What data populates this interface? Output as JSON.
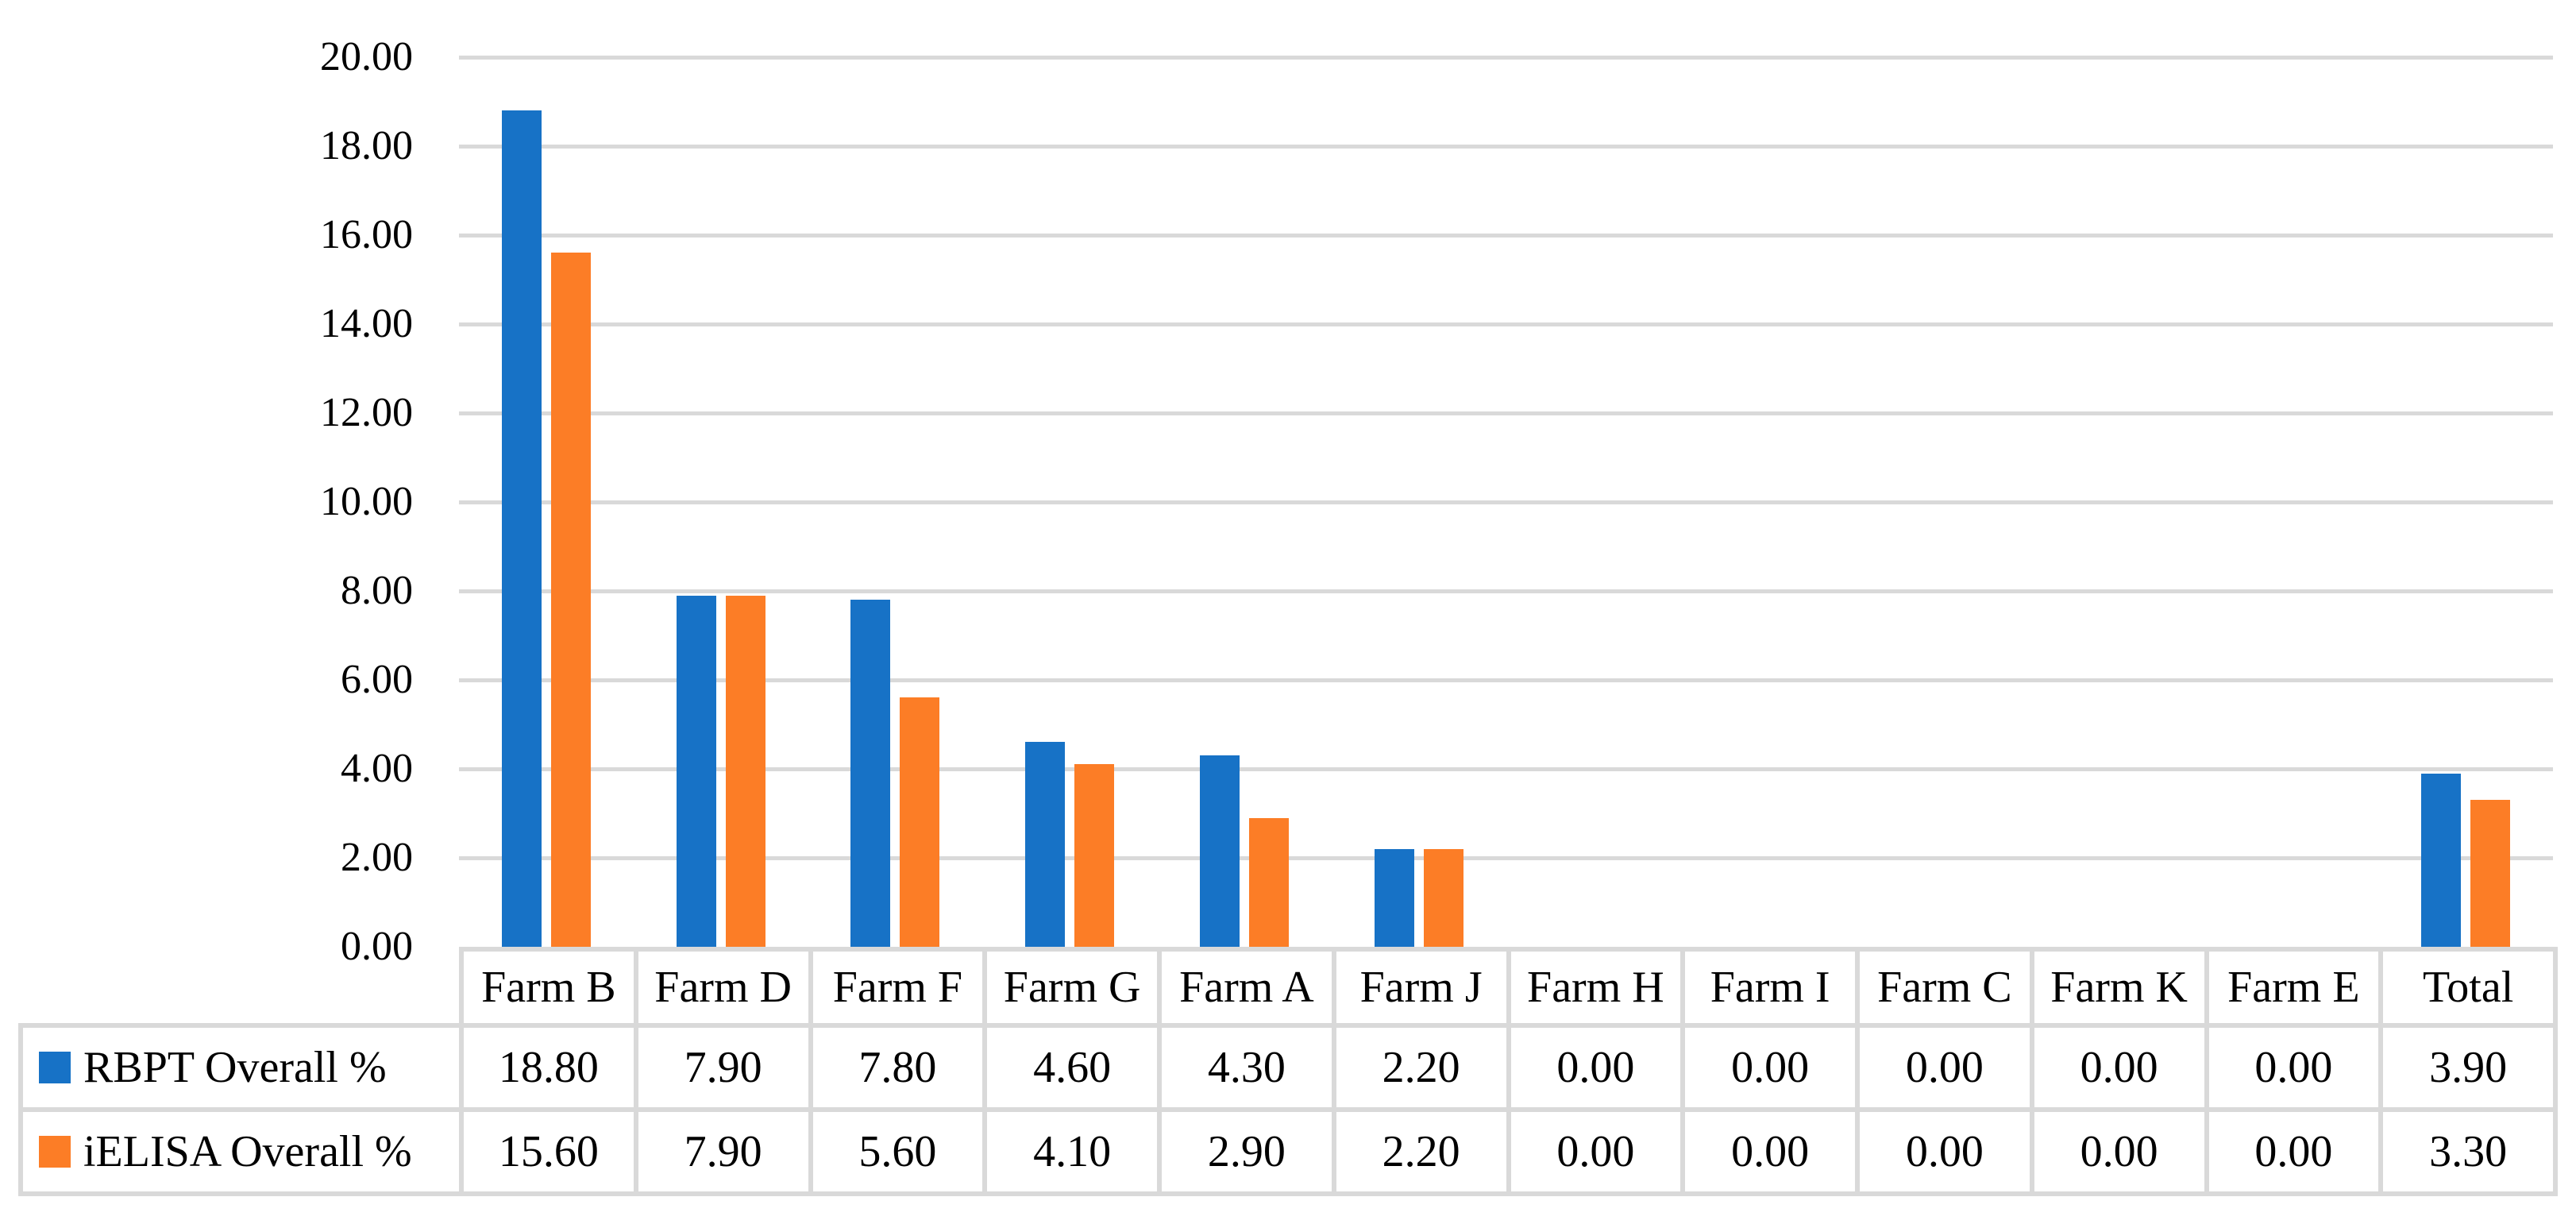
{
  "figure": {
    "background": "#FFFFFF",
    "text_color": "#000000"
  },
  "chart_data": {
    "type": "bar",
    "title": "",
    "xlabel": "",
    "ylabel": "",
    "categories": [
      "Farm B",
      "Farm D",
      "Farm F",
      "Farm G",
      "Farm A",
      "Farm J",
      "Farm H",
      "Farm I",
      "Farm C",
      "Farm K",
      "Farm E",
      "Total"
    ],
    "series": [
      {
        "name": "RBPT Overall %",
        "color": "#1772C6",
        "values": [
          18.8,
          7.9,
          7.8,
          4.6,
          4.3,
          2.2,
          0.0,
          0.0,
          0.0,
          0.0,
          0.0,
          3.9
        ]
      },
      {
        "name": "iELISA Overall %",
        "color": "#FC7D26",
        "values": [
          15.6,
          7.9,
          5.6,
          4.1,
          2.9,
          2.2,
          0.0,
          0.0,
          0.0,
          0.0,
          0.0,
          3.3
        ]
      }
    ],
    "ylim": [
      0,
      20
    ],
    "ytick_step": 2,
    "ytick_labels": [
      "0.00",
      "2.00",
      "4.00",
      "6.00",
      "8.00",
      "10.00",
      "12.00",
      "14.00",
      "16.00",
      "18.00",
      "20.00"
    ],
    "grid": true,
    "gridline_color": "#D9D9D9",
    "legend_position": "data-table-left-column"
  },
  "table": {
    "border_color": "#D9D9D9",
    "header": [
      "Farm B",
      "Farm D",
      "Farm F",
      "Farm G",
      "Farm A",
      "Farm J",
      "Farm H",
      "Farm I",
      "Farm C",
      "Farm K",
      "Farm E",
      "Total"
    ],
    "rows": [
      {
        "label": "RBPT Overall %",
        "swatch_color": "#1772C6",
        "values": [
          "18.80",
          "7.90",
          "7.80",
          "4.60",
          "4.30",
          "2.20",
          "0.00",
          "0.00",
          "0.00",
          "0.00",
          "0.00",
          "3.90"
        ]
      },
      {
        "label": "iELISA Overall %",
        "swatch_color": "#FC7D26",
        "values": [
          "15.60",
          "7.90",
          "5.60",
          "4.10",
          "2.90",
          "2.20",
          "0.00",
          "0.00",
          "0.00",
          "0.00",
          "0.00",
          "3.30"
        ]
      }
    ]
  }
}
